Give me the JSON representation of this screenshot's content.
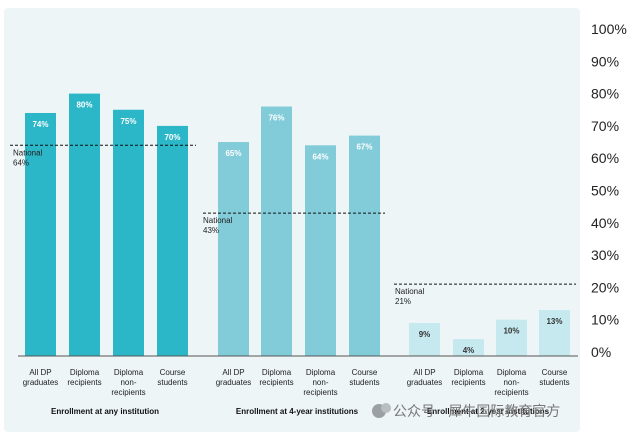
{
  "chart_data": {
    "type": "bar",
    "title": "",
    "xlabel": "",
    "ylabel": "",
    "ylim": [
      0,
      100
    ],
    "y_ticks": [
      "0%",
      "10%",
      "20%",
      "30%",
      "40%",
      "50%",
      "60%",
      "70%",
      "80%",
      "90%",
      "100%"
    ],
    "grid": false,
    "groups": [
      {
        "name": "Enrollment at any institution",
        "color": "#2bb7c7",
        "national_label": [
          "National",
          "64%"
        ],
        "national_value": 64,
        "categories": [
          [
            "All DP",
            "graduates"
          ],
          [
            "Diploma",
            "recipients"
          ],
          [
            "Diploma",
            "non-",
            "recipients"
          ],
          [
            "Course",
            "students"
          ]
        ],
        "values": [
          74,
          80,
          75,
          70
        ],
        "value_labels": [
          "74%",
          "80%",
          "75%",
          "70%"
        ]
      },
      {
        "name": "Enrollment at 4-year institutions",
        "color": "#82ccd9",
        "national_label": [
          "National",
          "43%"
        ],
        "national_value": 43,
        "categories": [
          [
            "All DP",
            "graduates"
          ],
          [
            "Diploma",
            "recipients"
          ],
          [
            "Diploma",
            "non-",
            "recipients"
          ],
          [
            "Course",
            "students"
          ]
        ],
        "values": [
          65,
          76,
          64,
          67
        ],
        "value_labels": [
          "65%",
          "76%",
          "64%",
          "67%"
        ]
      },
      {
        "name": "Enrollment at 2-year institutions",
        "color": "#c6e9ef",
        "national_label": [
          "National",
          "21%"
        ],
        "national_value": 21,
        "categories": [
          [
            "All DP",
            "graduates"
          ],
          [
            "Diploma",
            "recipients"
          ],
          [
            "Diploma",
            "non-",
            "recipients"
          ],
          [
            "Course",
            "students"
          ]
        ],
        "values": [
          9,
          4,
          10,
          13
        ],
        "value_labels": [
          "9%",
          "4%",
          "10%",
          "13%"
        ]
      }
    ]
  },
  "watermark_text": "公众号 · 犀牛国际教育官方",
  "colors": {
    "panel_bg": "#eef5f7",
    "axis_line": "#555555"
  }
}
